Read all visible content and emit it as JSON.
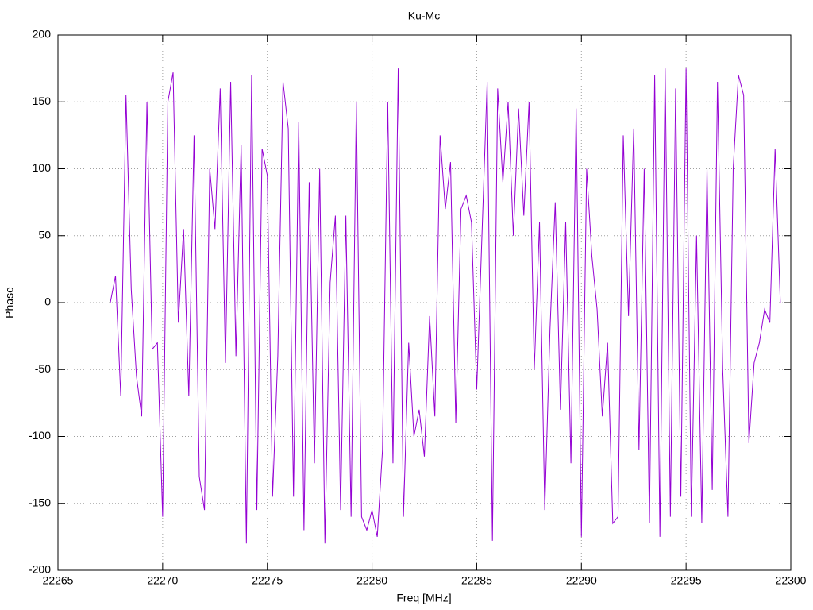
{
  "chart_data": {
    "type": "line",
    "title": "Ku-Mc",
    "x_label": "Freq [MHz]",
    "y_label": "Phase",
    "color": "#9400d3",
    "grid": true,
    "xlim": [
      22265,
      22300
    ],
    "xticks": [
      22265,
      22270,
      22275,
      22280,
      22285,
      22290,
      22295,
      22300
    ],
    "ylim": [
      -200,
      200
    ],
    "yticks": [
      -200,
      -150,
      -100,
      -50,
      0,
      50,
      100,
      150,
      200
    ],
    "x": [
      22267.5,
      22267.75,
      22268,
      22268.25,
      22268.5,
      22268.75,
      22269,
      22269.25,
      22269.5,
      22269.75,
      22270,
      22270.25,
      22270.5,
      22270.75,
      22271,
      22271.25,
      22271.5,
      22271.75,
      22272,
      22272.25,
      22272.5,
      22272.75,
      22273,
      22273.25,
      22273.5,
      22273.75,
      22274,
      22274.25,
      22274.5,
      22274.75,
      22275,
      22275.25,
      22275.5,
      22275.75,
      22276,
      22276.25,
      22276.5,
      22276.75,
      22277,
      22277.25,
      22277.5,
      22277.75,
      22278,
      22278.25,
      22278.5,
      22278.75,
      22279,
      22279.25,
      22279.5,
      22279.75,
      22280,
      22280.25,
      22280.5,
      22280.75,
      22281,
      22281.25,
      22281.5,
      22281.75,
      22282,
      22282.25,
      22282.5,
      22282.75,
      22283,
      22283.25,
      22283.5,
      22283.75,
      22284,
      22284.25,
      22284.5,
      22284.75,
      22285,
      22285.25,
      22285.5,
      22285.75,
      22286,
      22286.25,
      22286.5,
      22286.75,
      22287,
      22287.25,
      22287.5,
      22287.75,
      22288,
      22288.25,
      22288.5,
      22288.75,
      22289,
      22289.25,
      22289.5,
      22289.75,
      22290,
      22290.25,
      22290.5,
      22290.75,
      22291,
      22291.25,
      22291.5,
      22291.75,
      22292,
      22292.25,
      22292.5,
      22292.75,
      22293,
      22293.25,
      22293.5,
      22293.75,
      22294,
      22294.25,
      22294.5,
      22294.75,
      22295,
      22295.25,
      22295.5,
      22295.75,
      22296,
      22296.25,
      22296.5,
      22296.75,
      22297,
      22297.25,
      22297.5,
      22297.75,
      22298,
      22298.25,
      22298.5,
      22298.75,
      22299,
      22299.25,
      22299.5
    ],
    "values": [
      0,
      20,
      -70,
      155,
      10,
      -55,
      -85,
      150,
      -35,
      -30,
      -160,
      150,
      172,
      -15,
      55,
      -70,
      125,
      -130,
      -155,
      100,
      55,
      160,
      -45,
      165,
      -40,
      118,
      -180,
      170,
      -155,
      115,
      95,
      -145,
      -40,
      165,
      130,
      -145,
      135,
      -170,
      90,
      -120,
      100,
      -180,
      15,
      65,
      -155,
      65,
      -160,
      150,
      -160,
      -170,
      -155,
      -175,
      -110,
      150,
      -120,
      175,
      -160,
      -30,
      -100,
      -80,
      -115,
      -10,
      -85,
      125,
      70,
      105,
      -90,
      70,
      80,
      60,
      -65,
      50,
      165,
      -178,
      160,
      90,
      150,
      50,
      145,
      65,
      150,
      -50,
      60,
      -155,
      -20,
      75,
      -80,
      60,
      -120,
      145,
      -175,
      100,
      35,
      -5,
      -85,
      -30,
      -165,
      -160,
      125,
      -10,
      130,
      -110,
      100,
      -165,
      170,
      -175,
      175,
      -160,
      160,
      -145,
      175,
      -160,
      50,
      -165,
      100,
      -140,
      165,
      -50,
      -160,
      100,
      170,
      155,
      -105,
      -45,
      -30,
      -5,
      -15,
      115,
      0
    ]
  }
}
